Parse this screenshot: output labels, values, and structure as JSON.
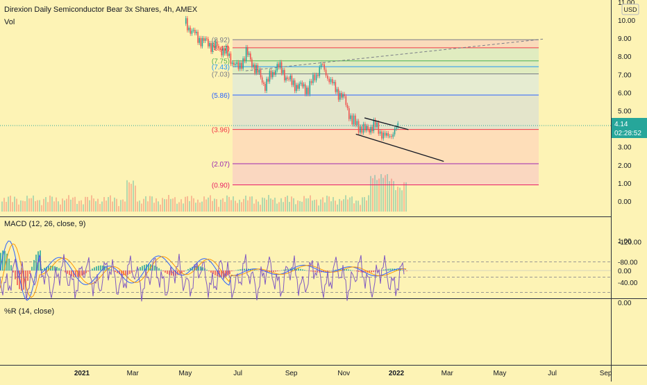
{
  "header": {
    "title": "Direxion Daily Semiconductor Bear 3x Shares, 4h, AMEX",
    "volume_label": "Vol",
    "currency": "USD"
  },
  "price_tag": {
    "value": "4.14",
    "countdown": "02:28:52"
  },
  "colors": {
    "background": "#fdf3b5",
    "up": "#26a69a",
    "down": "#ef5350",
    "macd_line": "#2962ff",
    "signal_line": "#ff9800",
    "williams_line": "#7e57c2",
    "price_tag": "#26a69a"
  },
  "chart_data": [
    {
      "type": "candlestick",
      "title": "Direxion Daily Semiconductor Bear 3x Shares, 4h, AMEX",
      "x_ticks": [
        "2021",
        "Mar",
        "May",
        "Jul",
        "Sep",
        "Nov",
        "2022",
        "Mar",
        "May",
        "Jul",
        "Sep"
      ],
      "x_tick_dates": [
        "2021-01-01",
        "2021-03-01",
        "2021-05-01",
        "2021-07-01",
        "2021-09-01",
        "2021-11-01",
        "2022-01-01",
        "2022-03-01",
        "2022-05-01",
        "2022-07-01",
        "2022-09-01"
      ],
      "y_ticks": [
        "0.00",
        "1.00",
        "2.00",
        "3.00",
        "4.00",
        "5.00",
        "6.00",
        "7.00",
        "8.00",
        "9.00",
        "10.00",
        "11.00"
      ],
      "y_values": [
        0,
        1,
        2,
        3,
        4,
        5,
        6,
        7,
        8,
        9,
        10,
        11
      ],
      "last_price": 4.14,
      "close_series": [
        {
          "date": "2021-05-01",
          "close": 9.8
        },
        {
          "date": "2021-05-15",
          "close": 9.0
        },
        {
          "date": "2021-06-01",
          "close": 8.6
        },
        {
          "date": "2021-06-15",
          "close": 8.3
        },
        {
          "date": "2021-07-01",
          "close": 7.3
        },
        {
          "date": "2021-07-10",
          "close": 8.2
        },
        {
          "date": "2021-07-20",
          "close": 7.4
        },
        {
          "date": "2021-08-01",
          "close": 6.4
        },
        {
          "date": "2021-08-15",
          "close": 7.5
        },
        {
          "date": "2021-09-01",
          "close": 6.5
        },
        {
          "date": "2021-09-20",
          "close": 6.2
        },
        {
          "date": "2021-10-05",
          "close": 7.5
        },
        {
          "date": "2021-10-20",
          "close": 6.3
        },
        {
          "date": "2021-11-01",
          "close": 5.6
        },
        {
          "date": "2021-11-10",
          "close": 4.4
        },
        {
          "date": "2021-11-25",
          "close": 3.9
        },
        {
          "date": "2021-12-05",
          "close": 4.2
        },
        {
          "date": "2021-12-20",
          "close": 3.5
        },
        {
          "date": "2022-01-04",
          "close": 4.14
        }
      ],
      "fib_levels": [
        {
          "label": "(8.92)",
          "value": 8.92,
          "color": "#787b86"
        },
        {
          "label": "(8.47)",
          "value": 8.47,
          "color": "#f23645"
        },
        {
          "label": "(7.75)",
          "value": 7.75,
          "color": "#4caf50"
        },
        {
          "label": "(7.43)",
          "value": 7.43,
          "color": "#2196f3"
        },
        {
          "label": "(7.03)",
          "value": 7.03,
          "color": "#787b86"
        },
        {
          "label": "(5.86)",
          "value": 5.86,
          "color": "#2962ff"
        },
        {
          "label": "(3.96)",
          "value": 3.96,
          "color": "#f23645"
        },
        {
          "label": "(2.07)",
          "value": 2.07,
          "color": "#9c27b0"
        },
        {
          "label": "(0.90)",
          "value": 0.9,
          "color": "#e91e63"
        }
      ],
      "trend_lines": [
        {
          "from": {
            "date": "2021-11-25",
            "price": 4.6
          },
          "to": {
            "date": "2022-01-15",
            "price": 3.95
          }
        },
        {
          "from": {
            "date": "2021-11-15",
            "price": 3.7
          },
          "to": {
            "date": "2022-02-25",
            "price": 2.2
          }
        },
        {
          "from": {
            "date": "2021-07-10",
            "price": 7.2
          },
          "to": {
            "date": "2022-06-20",
            "price": 8.95
          },
          "dashed": true
        }
      ]
    },
    {
      "type": "line",
      "title": "MACD (12, 26, close, 9)",
      "y_ticks": [
        "1.00",
        "0.00"
      ],
      "y_values": [
        1,
        0
      ],
      "series": [],
      "histogram": "up/down colored bars around zero"
    },
    {
      "type": "line",
      "title": "%R (14, close)",
      "y_ticks": [
        "0.00",
        "-40.00",
        "-80.00",
        "-120.00"
      ],
      "y_values": [
        0,
        -40,
        -80,
        -120
      ],
      "bands": [
        -20,
        -80
      ],
      "middle": -50
    }
  ]
}
